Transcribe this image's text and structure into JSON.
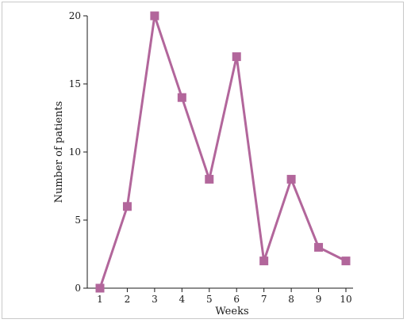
{
  "chart_data": {
    "type": "line",
    "title": "",
    "xlabel": "Weeks",
    "ylabel": "Number of patients",
    "x": [
      1,
      2,
      3,
      4,
      5,
      6,
      7,
      8,
      9,
      10
    ],
    "xlim": [
      1,
      10
    ],
    "ylim": [
      0,
      20
    ],
    "yticks": [
      0,
      5,
      10,
      15,
      20
    ],
    "grid": false,
    "legend": "none",
    "series": [
      {
        "values": [
          0,
          6,
          20,
          14,
          8,
          17,
          2,
          8,
          3,
          2
        ],
        "color": "#b2669b",
        "marker": "square"
      }
    ]
  }
}
